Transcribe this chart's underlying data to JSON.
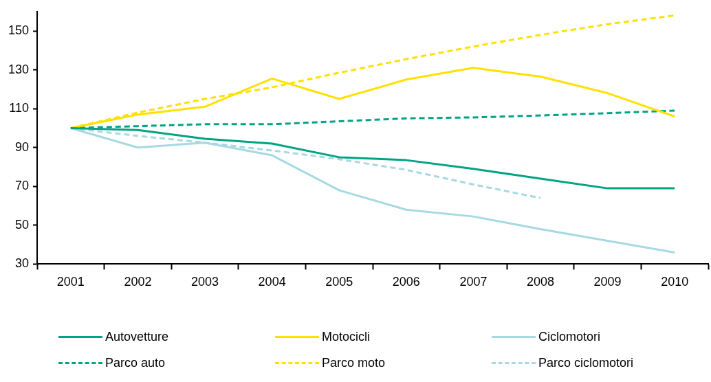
{
  "chart_data": {
    "type": "line",
    "categories": [
      "2001",
      "2002",
      "2003",
      "2004",
      "2005",
      "2006",
      "2007",
      "2008",
      "2009",
      "2010"
    ],
    "ylim": [
      30,
      160
    ],
    "yticks": [
      30,
      50,
      70,
      90,
      110,
      130,
      150
    ],
    "grid": false,
    "legend": "bottom",
    "marker": "none",
    "series": [
      {
        "name": "Autovetture",
        "color": "#00a383",
        "line_style": "solid",
        "values": [
          100,
          99,
          94.5,
          92,
          85,
          83.5,
          79,
          74,
          69,
          69
        ]
      },
      {
        "name": "Motocicli",
        "color": "#ffe100",
        "line_style": "solid",
        "values": [
          100,
          107,
          111,
          125.5,
          115,
          125,
          131,
          126.5,
          118,
          106
        ]
      },
      {
        "name": "Ciclomotori",
        "color": "#a6d9e2",
        "line_style": "solid",
        "values": [
          100,
          90,
          92.5,
          86,
          68,
          58,
          54.5,
          48,
          42,
          36
        ]
      },
      {
        "name": "Parco auto",
        "color": "#00a383",
        "line_style": "dashed",
        "values": [
          100,
          101,
          102,
          102,
          103.5,
          105,
          105.5,
          106.5,
          107.7,
          109
        ]
      },
      {
        "name": "Parco moto",
        "color": "#ffe100",
        "line_style": "dashed",
        "values": [
          100,
          108,
          115,
          121,
          128.5,
          135.5,
          142,
          148,
          153.5,
          158
        ]
      },
      {
        "name": "Parco ciclomotori",
        "color": "#a6d9e2",
        "line_style": "dashed",
        "values": [
          100,
          96,
          92.5,
          88.5,
          84,
          78.5,
          71,
          64,
          null,
          null
        ]
      }
    ]
  }
}
